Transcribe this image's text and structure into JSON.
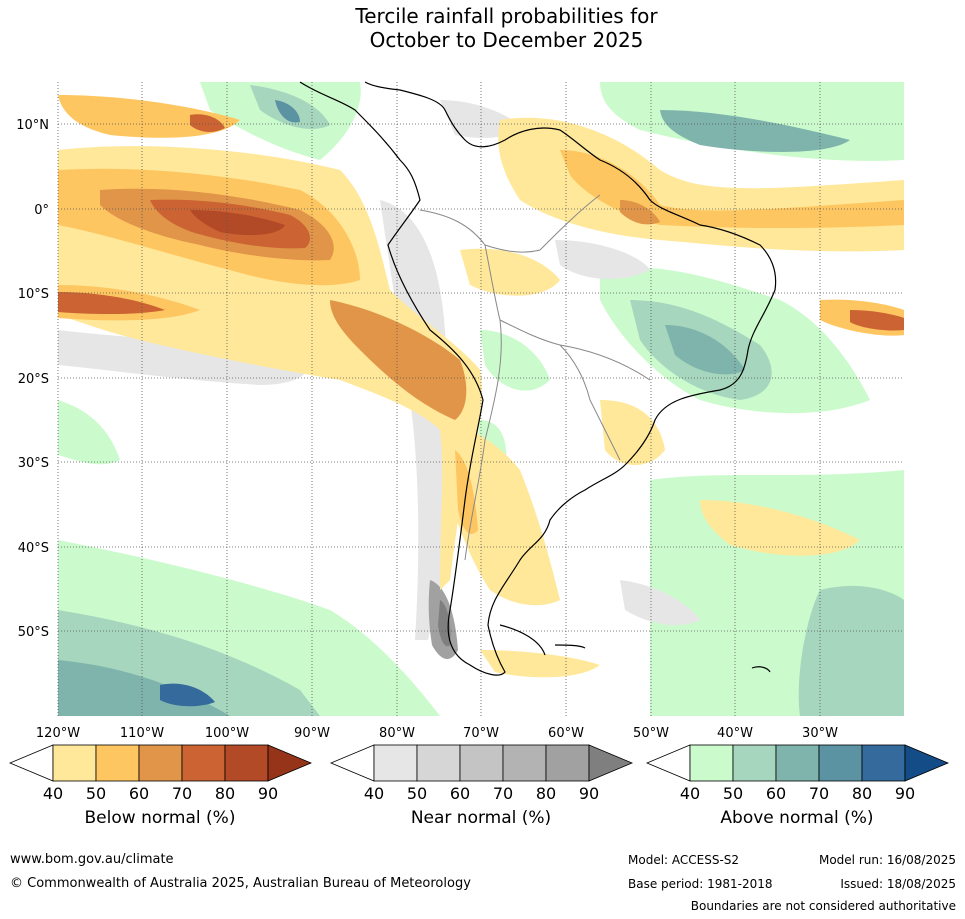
{
  "title": {
    "line1": "Tercile rainfall probabilities for",
    "line2": "October to December 2025"
  },
  "map": {
    "lat_labels": [
      "10°N",
      "0°",
      "10°S",
      "20°S",
      "30°S",
      "40°S",
      "50°S"
    ],
    "lon_labels": [
      "120°W",
      "110°W",
      "100°W",
      "90°W",
      "80°W",
      "70°W",
      "60°W",
      "50°W",
      "40°W",
      "30°W"
    ]
  },
  "colorbars": [
    {
      "label": "Below normal (%)",
      "ticks": [
        "40",
        "50",
        "60",
        "70",
        "80",
        "90"
      ],
      "colors": [
        "#ffffff",
        "#ffe89a",
        "#fec660",
        "#e09549",
        "#cb6332",
        "#b34a27",
        "#963419"
      ]
    },
    {
      "label": "Near normal (%)",
      "ticks": [
        "40",
        "50",
        "60",
        "70",
        "80",
        "90"
      ],
      "colors": [
        "#ffffff",
        "#e6e6e6",
        "#d6d6d6",
        "#c4c4c4",
        "#b3b3b3",
        "#a1a1a1",
        "#7f7f7f"
      ]
    },
    {
      "label": "Above normal (%)",
      "ticks": [
        "40",
        "50",
        "60",
        "70",
        "80",
        "90"
      ],
      "colors": [
        "#ffffff",
        "#cbfbcc",
        "#a6d6bd",
        "#7fb4ad",
        "#5b93a3",
        "#346a9c",
        "#134c87"
      ]
    }
  ],
  "footer": {
    "website": "www.bom.gov.au/climate",
    "copyright": "© Commonwealth of Australia 2025, Australian Bureau of Meteorology",
    "model": "Model: ACCESS-S2",
    "model_run": "Model run: 16/08/2025",
    "base_period": "Base period: 1981-2018",
    "issued": "Issued: 18/08/2025",
    "disclaimer": "Boundaries are not considered authoritative"
  }
}
